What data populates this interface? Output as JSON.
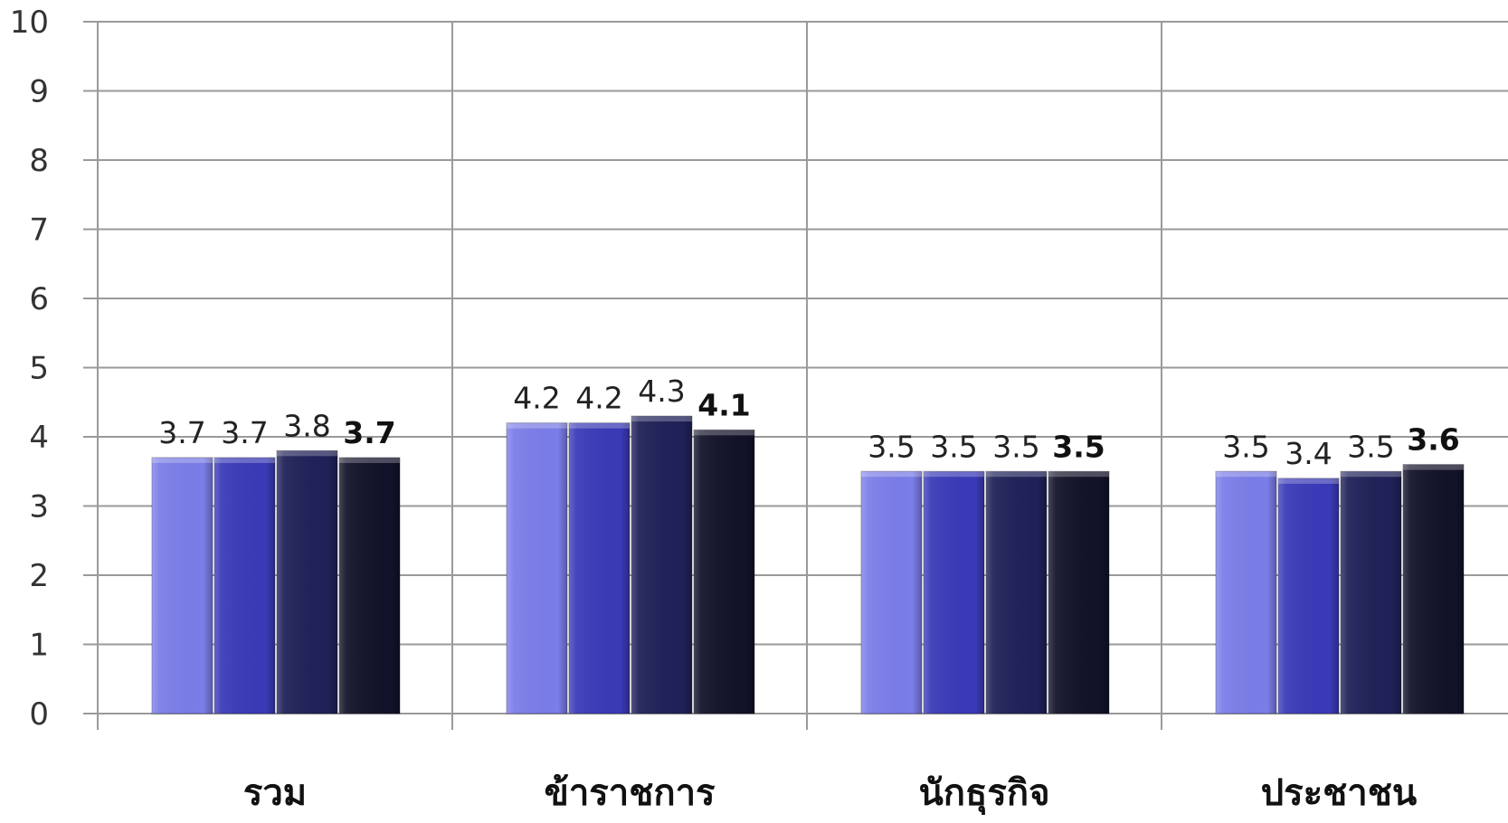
{
  "chart_data": {
    "type": "bar",
    "categories": [
      "รวม",
      "ข้าราชการ",
      "นักธุรกิจ",
      "ประชาชน"
    ],
    "series": [
      {
        "color": "#7b7de8",
        "values": [
          3.7,
          4.2,
          3.5,
          3.5
        ]
      },
      {
        "color": "#3a3ab8",
        "values": [
          3.7,
          4.2,
          3.5,
          3.4
        ]
      },
      {
        "color": "#1f2158",
        "values": [
          3.8,
          4.3,
          3.5,
          3.5
        ]
      },
      {
        "color": "#12122a",
        "values": [
          3.7,
          4.1,
          3.5,
          3.6
        ],
        "label_bold": true
      }
    ],
    "ylim": [
      0,
      10
    ],
    "yticks": [
      "0",
      "1",
      "2",
      "3",
      "4",
      "5",
      "6",
      "7",
      "8",
      "9",
      "10"
    ],
    "grid": true,
    "title": "",
    "xlabel": "",
    "ylabel": ""
  }
}
